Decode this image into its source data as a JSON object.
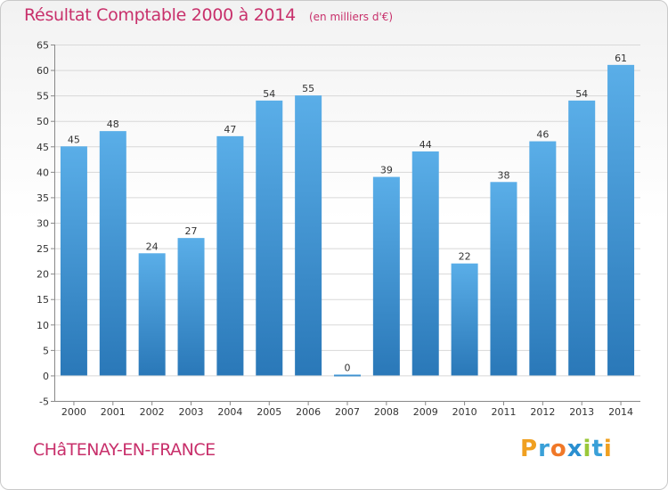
{
  "header": {
    "title": "Résultat Comptable 2000 à 2014",
    "subtitle": "(en milliers d'€)"
  },
  "footer": {
    "commune": "CHâTENAY-EN-FRANCE",
    "logo_letters": [
      "P",
      "r",
      "o",
      "x",
      "i",
      "t",
      "i"
    ],
    "logo_colors": [
      "#f0a020",
      "#3aa0d8",
      "#f07828",
      "#2a8fd0",
      "#9ac83a",
      "#3aa0d8",
      "#f0a020"
    ]
  },
  "colors": {
    "bar_light": "#5aaee8",
    "bar_dark": "#2a78b8",
    "title": "#c8306b",
    "grid": "#d8d8d8"
  },
  "chart_data": {
    "type": "bar",
    "title": "Résultat Comptable 2000 à 2014",
    "subtitle": "(en milliers d'€)",
    "categories": [
      "2000",
      "2001",
      "2002",
      "2003",
      "2004",
      "2005",
      "2006",
      "2007",
      "2008",
      "2009",
      "2010",
      "2011",
      "2012",
      "2013",
      "2014"
    ],
    "values": [
      45,
      48,
      24,
      27,
      47,
      54,
      55,
      0,
      39,
      44,
      22,
      38,
      46,
      54,
      61
    ],
    "ylim": [
      -5,
      65
    ],
    "yticks": [
      -5,
      0,
      5,
      10,
      15,
      20,
      25,
      30,
      35,
      40,
      45,
      50,
      55,
      60,
      65
    ],
    "grid": true,
    "data_labels": true
  }
}
